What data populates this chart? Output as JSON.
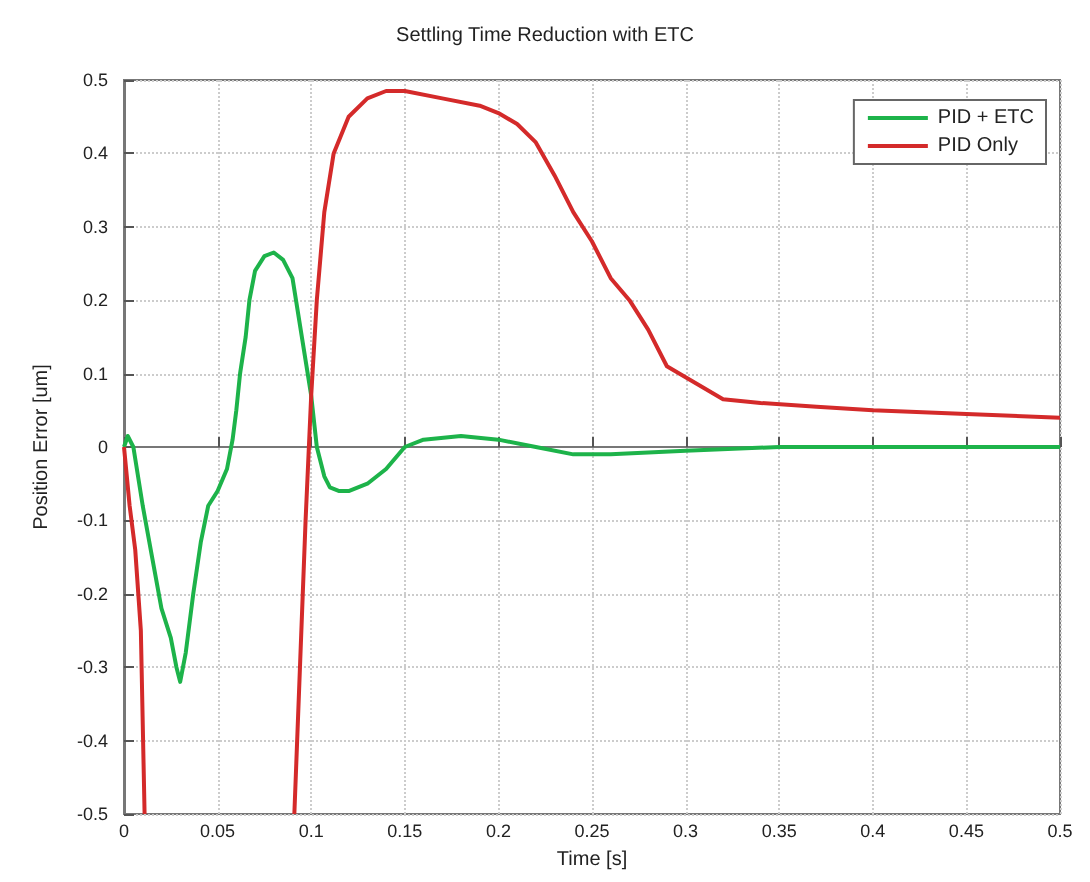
{
  "chart_data": {
    "type": "line",
    "title": "Settling Time Reduction with ETC",
    "xlabel": "Time [s]",
    "ylabel": "Position Error [um]",
    "xlim": [
      0,
      0.5
    ],
    "xticks": [
      0,
      0.05,
      0.1,
      0.15,
      0.2,
      0.25,
      0.3,
      0.35,
      0.4,
      0.45,
      0.5
    ],
    "ylim": [
      -0.5,
      0.5
    ],
    "yticks": [
      -0.5,
      -0.4,
      -0.3,
      -0.2,
      -0.1,
      0,
      0.1,
      0.2,
      0.3,
      0.4,
      0.5
    ],
    "grid": true,
    "legend": "top right",
    "marker": "none",
    "line_style": "solid",
    "series": [
      {
        "name": "PID + ETC",
        "color": "#1db34a",
        "x": [
          0,
          0.002,
          0.005,
          0.01,
          0.015,
          0.02,
          0.025,
          0.028,
          0.03,
          0.033,
          0.037,
          0.041,
          0.045,
          0.05,
          0.055,
          0.058,
          0.06,
          0.062,
          0.065,
          0.067,
          0.07,
          0.075,
          0.08,
          0.085,
          0.09,
          0.095,
          0.1,
          0.103,
          0.107,
          0.11,
          0.115,
          0.12,
          0.13,
          0.14,
          0.15,
          0.16,
          0.18,
          0.2,
          0.22,
          0.24,
          0.26,
          0.3,
          0.35,
          0.4,
          0.45,
          0.5
        ],
        "values": [
          0,
          0.015,
          0,
          -0.08,
          -0.15,
          -0.22,
          -0.26,
          -0.3,
          -0.32,
          -0.28,
          -0.2,
          -0.13,
          -0.08,
          -0.06,
          -0.03,
          0.01,
          0.05,
          0.1,
          0.15,
          0.2,
          0.24,
          0.26,
          0.265,
          0.255,
          0.23,
          0.15,
          0.07,
          0,
          -0.04,
          -0.055,
          -0.06,
          -0.06,
          -0.05,
          -0.03,
          0,
          0.01,
          0.015,
          0.01,
          0,
          -0.01,
          -0.01,
          -0.005,
          0,
          0,
          0,
          0
        ]
      },
      {
        "name": "PID Only",
        "color": "#d42a2a",
        "x": [
          0,
          0.003,
          0.006,
          0.009,
          0.011,
          0.05,
          0.091,
          0.094,
          0.097,
          0.1,
          0.103,
          0.107,
          0.112,
          0.12,
          0.13,
          0.14,
          0.15,
          0.17,
          0.19,
          0.2,
          0.21,
          0.22,
          0.23,
          0.24,
          0.25,
          0.26,
          0.27,
          0.28,
          0.29,
          0.3,
          0.31,
          0.32,
          0.34,
          0.37,
          0.4,
          0.45,
          0.5
        ],
        "values": [
          0,
          -0.08,
          -0.14,
          -0.25,
          -0.5,
          null,
          -0.5,
          -0.3,
          -0.1,
          0.07,
          0.2,
          0.32,
          0.4,
          0.45,
          0.475,
          0.485,
          0.485,
          0.475,
          0.465,
          0.455,
          0.44,
          0.415,
          0.37,
          0.32,
          0.28,
          0.23,
          0.2,
          0.16,
          0.11,
          0.095,
          0.08,
          0.065,
          0.06,
          0.055,
          0.05,
          0.045,
          0.04
        ]
      }
    ]
  }
}
